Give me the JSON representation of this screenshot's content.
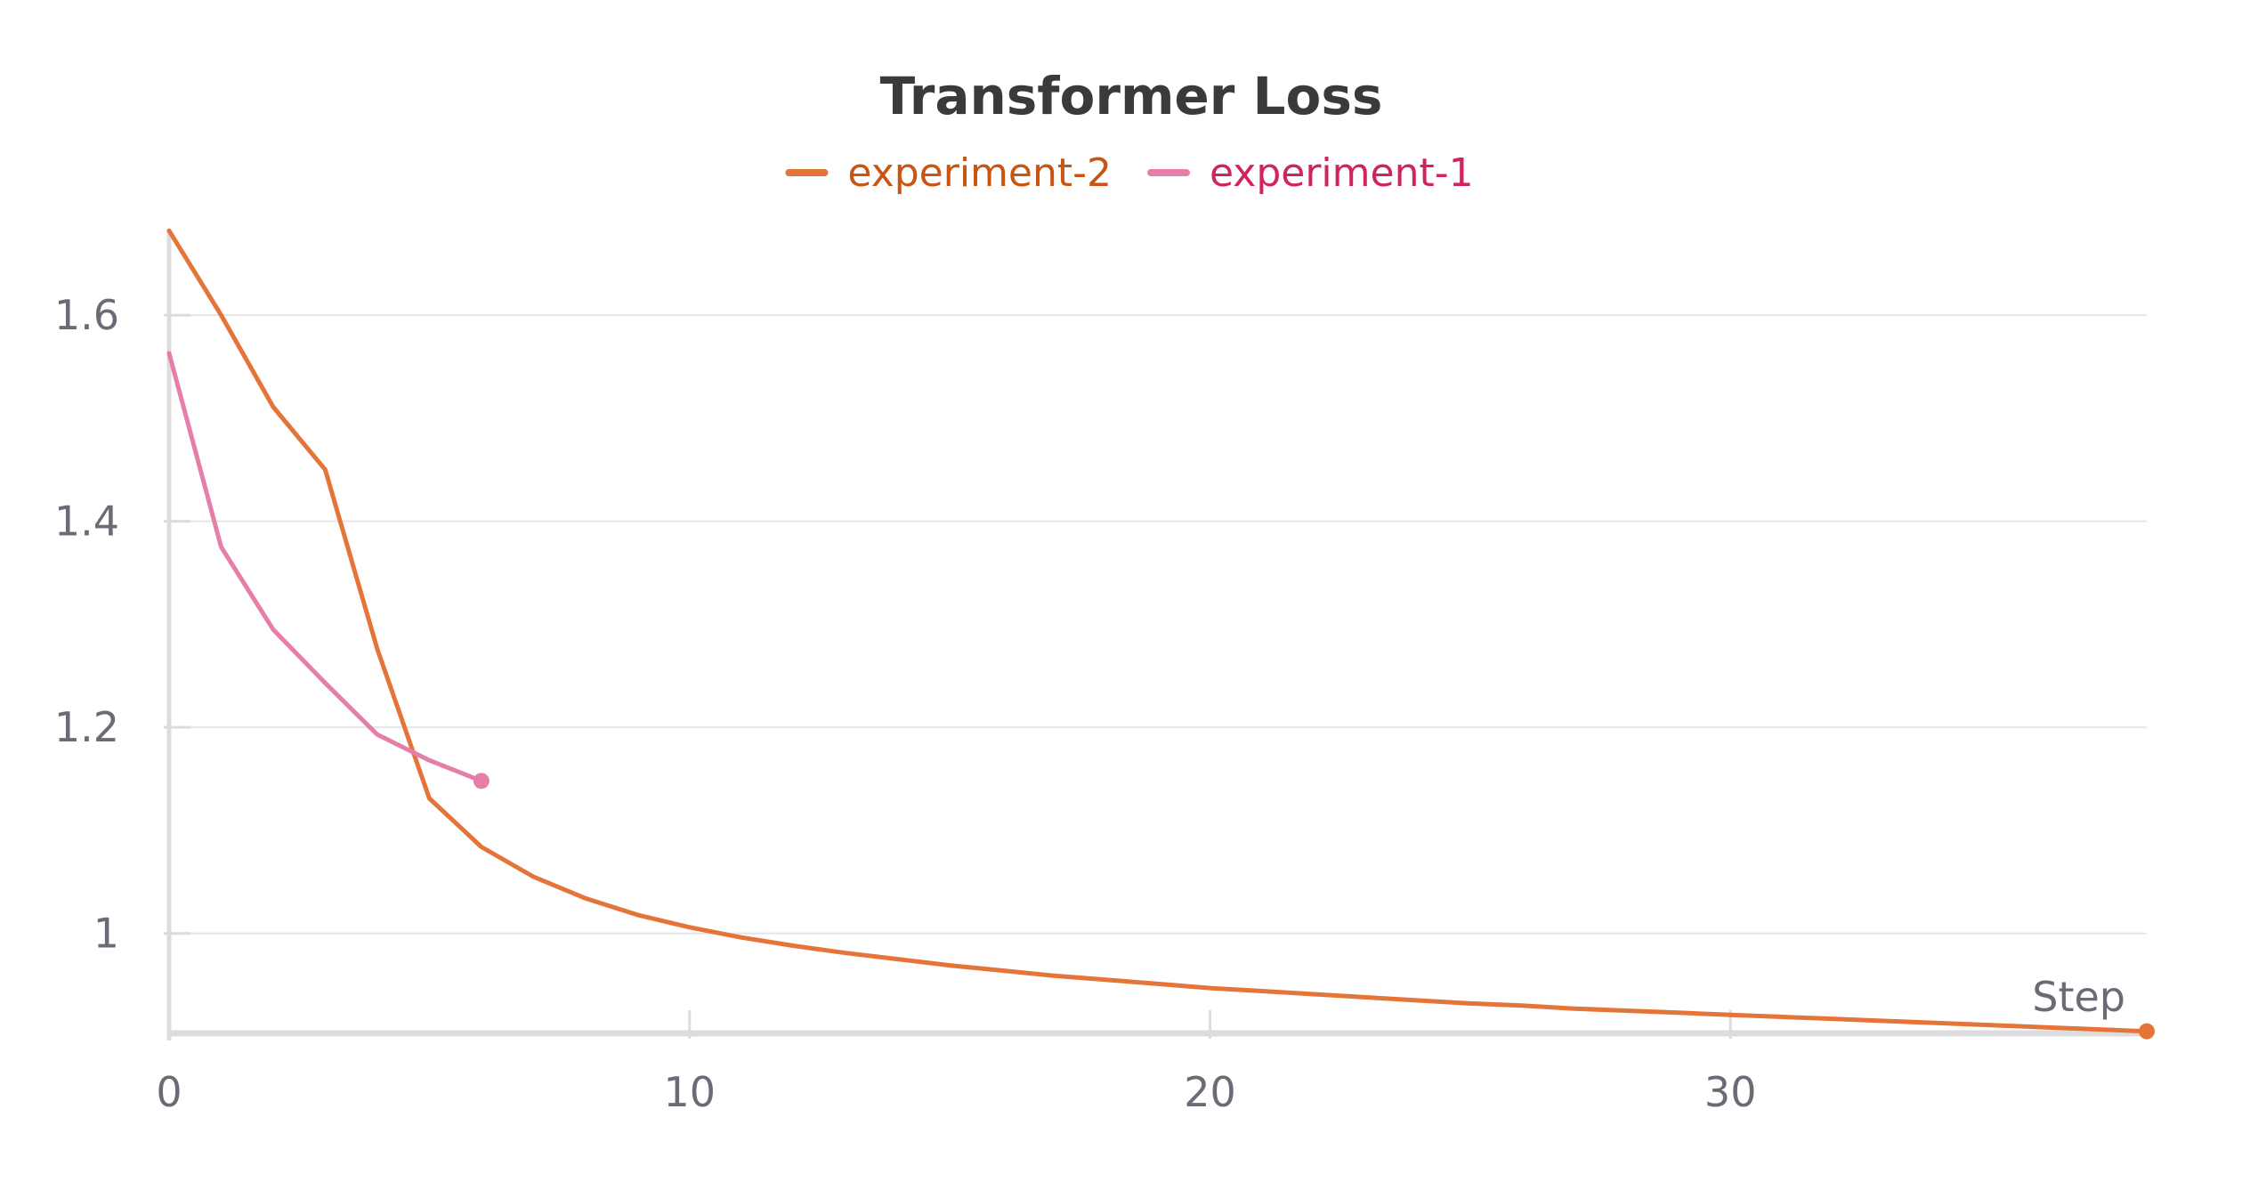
{
  "chart_data": {
    "type": "line",
    "title": "Transformer Loss",
    "xlabel": "Step",
    "ylabel": "",
    "xlim": [
      0,
      38
    ],
    "ylim": [
      0.903,
      1.683
    ],
    "xticks": [
      0,
      10,
      20,
      30
    ],
    "xtick_labels": [
      "0",
      "10",
      "20",
      "30"
    ],
    "yticks": [
      1.0,
      1.2,
      1.4,
      1.6
    ],
    "ytick_labels": [
      "1",
      "1.2",
      "1.4",
      "1.6"
    ],
    "grid": "horizontal",
    "legend_position": "top-center",
    "series": [
      {
        "name": "experiment-2",
        "color": "#e57439",
        "legend_text_color": "#c95512",
        "x": [
          0,
          1,
          2,
          3,
          4,
          5,
          6,
          7,
          8,
          9,
          10,
          11,
          12,
          13,
          14,
          15,
          16,
          17,
          18,
          19,
          20,
          21,
          22,
          23,
          24,
          25,
          26,
          27,
          28,
          29,
          30,
          31,
          32,
          33,
          34,
          35,
          36,
          37,
          38
        ],
        "values": [
          1.682,
          1.6,
          1.511,
          1.45,
          1.276,
          1.131,
          1.084,
          1.055,
          1.034,
          1.018,
          1.006,
          0.996,
          0.988,
          0.981,
          0.975,
          0.969,
          0.964,
          0.959,
          0.955,
          0.951,
          0.947,
          0.944,
          0.941,
          0.938,
          0.935,
          0.932,
          0.93,
          0.927,
          0.925,
          0.923,
          0.921,
          0.919,
          0.917,
          0.915,
          0.913,
          0.911,
          0.909,
          0.907,
          0.905
        ],
        "end_marker": true
      },
      {
        "name": "experiment-1",
        "color": "#e67ea9",
        "legend_text_color": "#d1245f",
        "x": [
          0,
          1,
          2,
          3,
          4,
          5,
          6
        ],
        "values": [
          1.563,
          1.375,
          1.295,
          1.243,
          1.193,
          1.168,
          1.148
        ],
        "end_marker": true
      }
    ]
  }
}
